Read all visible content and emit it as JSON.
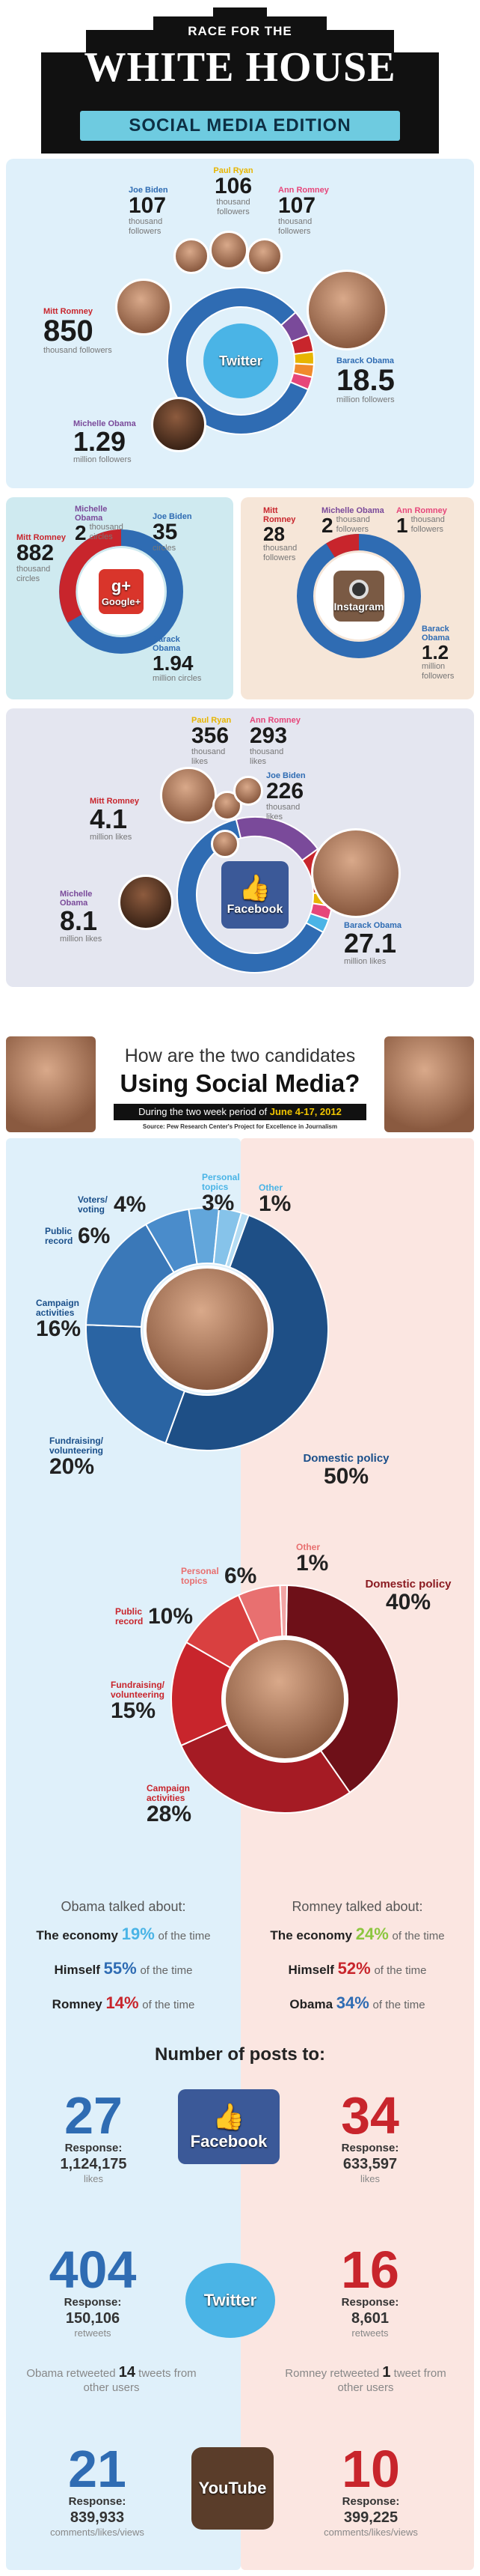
{
  "header": {
    "kicker": "RACE FOR THE",
    "title": "WHITE HOUSE",
    "edition": "SOCIAL MEDIA EDITION"
  },
  "twitter": {
    "logo": "Twitter",
    "people": [
      {
        "name": "Paul Ryan",
        "value": "106",
        "unit": "thousand followers"
      },
      {
        "name": "Joe Biden",
        "value": "107",
        "unit": "thousand followers"
      },
      {
        "name": "Ann Romney",
        "value": "107",
        "unit": "thousand followers"
      },
      {
        "name": "Mitt Romney",
        "value": "850",
        "unit": "thousand followers"
      },
      {
        "name": "Barack Obama",
        "value": "18.5",
        "unit": "million followers"
      },
      {
        "name": "Michelle Obama",
        "value": "1.29",
        "unit": "million followers"
      }
    ]
  },
  "googleplus": {
    "logo": "Google+",
    "people": [
      {
        "name": "Michelle Obama",
        "value": "2",
        "unit": "thousand circles"
      },
      {
        "name": "Joe Biden",
        "value": "35",
        "unit": "circles"
      },
      {
        "name": "Mitt Romney",
        "value": "882",
        "unit": "thousand circles"
      },
      {
        "name": "Barack Obama",
        "value": "1.94",
        "unit": "million circles"
      }
    ]
  },
  "instagram": {
    "logo": "Instagram",
    "people": [
      {
        "name": "Mitt Romney",
        "value": "28",
        "unit": "thousand followers"
      },
      {
        "name": "Michelle Obama",
        "value": "2",
        "unit": "thousand followers"
      },
      {
        "name": "Ann Romney",
        "value": "1",
        "unit": "thousand followers"
      },
      {
        "name": "Barack Obama",
        "value": "1.2",
        "unit": "million followers"
      }
    ]
  },
  "facebook": {
    "logo": "Facebook",
    "people": [
      {
        "name": "Paul Ryan",
        "value": "356",
        "unit": "thousand likes"
      },
      {
        "name": "Ann Romney",
        "value": "293",
        "unit": "thousand likes"
      },
      {
        "name": "Joe Biden",
        "value": "226",
        "unit": "thousand likes"
      },
      {
        "name": "Mitt Romney",
        "value": "4.1",
        "unit": "million likes"
      },
      {
        "name": "Michelle Obama",
        "value": "8.1",
        "unit": "million likes"
      },
      {
        "name": "Barack Obama",
        "value": "27.1",
        "unit": "million likes"
      }
    ]
  },
  "section2": {
    "title_line1": "How are the two candidates",
    "title_line2": "Using Social Media?",
    "period_text": "During the two week period of ",
    "period_date": "June 4-17, 2012",
    "source": "Source: Pew Research Center's Project for Excellence in Journalism"
  },
  "chart_data": [
    {
      "type": "pie",
      "name": "Obama",
      "categories": [
        "Domestic policy",
        "Fundraising/ volunteering",
        "Campaign activities",
        "Public record",
        "Voters/ voting",
        "Personal topics",
        "Other"
      ],
      "values": [
        50,
        20,
        16,
        6,
        4,
        3,
        1
      ],
      "labels": [
        "50%",
        "20%",
        "16%",
        "6%",
        "4%",
        "3%",
        "1%"
      ]
    },
    {
      "type": "pie",
      "name": "Romney",
      "categories": [
        "Domestic policy",
        "Campaign activities",
        "Fundraising/ volunteering",
        "Public record",
        "Personal topics",
        "Other"
      ],
      "values": [
        40,
        28,
        15,
        10,
        6,
        1
      ],
      "labels": [
        "40%",
        "28%",
        "15%",
        "10%",
        "6%",
        "1%"
      ]
    },
    {
      "type": "pie",
      "name": "Twitter followers",
      "categories": [
        "Barack Obama",
        "Michelle Obama",
        "Mitt Romney",
        "Joe Biden",
        "Paul Ryan",
        "Ann Romney"
      ],
      "values": [
        18500,
        1290,
        850,
        107,
        106,
        107
      ]
    },
    {
      "type": "pie",
      "name": "Facebook likes",
      "categories": [
        "Barack Obama",
        "Michelle Obama",
        "Mitt Romney",
        "Paul Ryan",
        "Ann Romney",
        "Joe Biden"
      ],
      "values": [
        27100,
        8100,
        4100,
        356,
        293,
        226
      ]
    }
  ],
  "talked": {
    "obama_title": "Obama talked about:",
    "romney_title": "Romney talked about:",
    "suffix": "of the time",
    "obama": [
      {
        "topic": "The economy",
        "pct": "19%"
      },
      {
        "topic": "Himself",
        "pct": "55%"
      },
      {
        "topic": "Romney",
        "pct": "14%"
      }
    ],
    "romney": [
      {
        "topic": "The economy",
        "pct": "24%"
      },
      {
        "topic": "Himself",
        "pct": "52%"
      },
      {
        "topic": "Obama",
        "pct": "34%"
      }
    ]
  },
  "posts": {
    "title": "Number of posts to:",
    "facebook": {
      "logo": "Facebook",
      "obama": "27",
      "obama_resp": "1,124,175",
      "romney": "34",
      "romney_resp": "633,597",
      "unit": "likes"
    },
    "twitter": {
      "logo": "Twitter",
      "obama": "404",
      "obama_resp": "150,106",
      "romney": "16",
      "romney_resp": "8,601",
      "unit": "retweets",
      "obama_note_a": "Obama retweeted ",
      "obama_note_n": "14",
      "obama_note_b": " tweets from other users",
      "romney_note_a": "Romney retweeted ",
      "romney_note_n": "1",
      "romney_note_b": " tweet from other users"
    },
    "youtube": {
      "logo": "YouTube",
      "obama": "21",
      "obama_resp": "839,933",
      "romney": "10",
      "romney_resp": "399,225",
      "unit": "comments/likes/views"
    },
    "response_label": "Response:"
  },
  "colors": {
    "obama": "#2f6cb3",
    "romney": "#c8252c",
    "twitter_bg": "#dff0fa",
    "gplus_bg": "#cfeaf0",
    "insta_bg": "#f6e6d8",
    "fb_bg": "#e4e6f0"
  }
}
